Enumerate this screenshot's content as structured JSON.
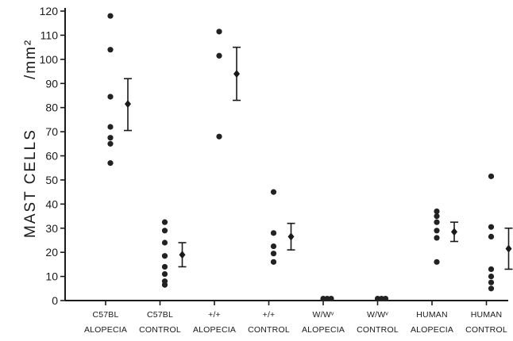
{
  "chart_data": {
    "type": "scatter",
    "ylabel": "MAST CELLS",
    "ylabel_unit": "/mm²",
    "ylim": [
      0,
      120
    ],
    "yticks": [
      0,
      10,
      20,
      30,
      40,
      50,
      60,
      70,
      80,
      90,
      100,
      110,
      120
    ],
    "groups": [
      {
        "label_line1": "C57BL",
        "label_line2": "ALOPECIA",
        "points": [
          118,
          104,
          84.5,
          72,
          67.5,
          65,
          57
        ],
        "mean": 81.5,
        "err_low": 70.5,
        "err_high": 92
      },
      {
        "label_line1": "C57BL",
        "label_line2": "CONTROL",
        "points": [
          32.5,
          29,
          24,
          18.5,
          14,
          11,
          8,
          6.5
        ],
        "mean": 19,
        "err_low": 14,
        "err_high": 24
      },
      {
        "label_line1": "+/+",
        "label_line2": "ALOPECIA",
        "points": [
          111.5,
          101.5,
          68
        ],
        "mean": 94,
        "err_low": 83,
        "err_high": 105
      },
      {
        "label_line1": "+/+",
        "label_line2": "CONTROL",
        "points": [
          45,
          28,
          22.5,
          19.5,
          16
        ],
        "mean": 26.5,
        "err_low": 21,
        "err_high": 32
      },
      {
        "label_line1": "W/Wᵛ",
        "label_line2": "ALOPECIA",
        "points": [
          0.8,
          0.8,
          0.8
        ],
        "mean": null,
        "err_low": null,
        "err_high": null
      },
      {
        "label_line1": "W/Wᵛ",
        "label_line2": "CONTROL",
        "points": [
          0.8,
          0.8,
          0.8
        ],
        "mean": null,
        "err_low": null,
        "err_high": null
      },
      {
        "label_line1": "HUMAN",
        "label_line2": "ALOPECIA",
        "points": [
          37,
          35,
          32.5,
          29,
          26,
          16
        ],
        "mean": 28.5,
        "err_low": 24.5,
        "err_high": 32.5
      },
      {
        "label_line1": "HUMAN",
        "label_line2": "CONTROL",
        "points": [
          51.5,
          30.5,
          26.5,
          13,
          10,
          7.5,
          5
        ],
        "mean": 21.5,
        "err_low": 13,
        "err_high": 30
      }
    ]
  }
}
